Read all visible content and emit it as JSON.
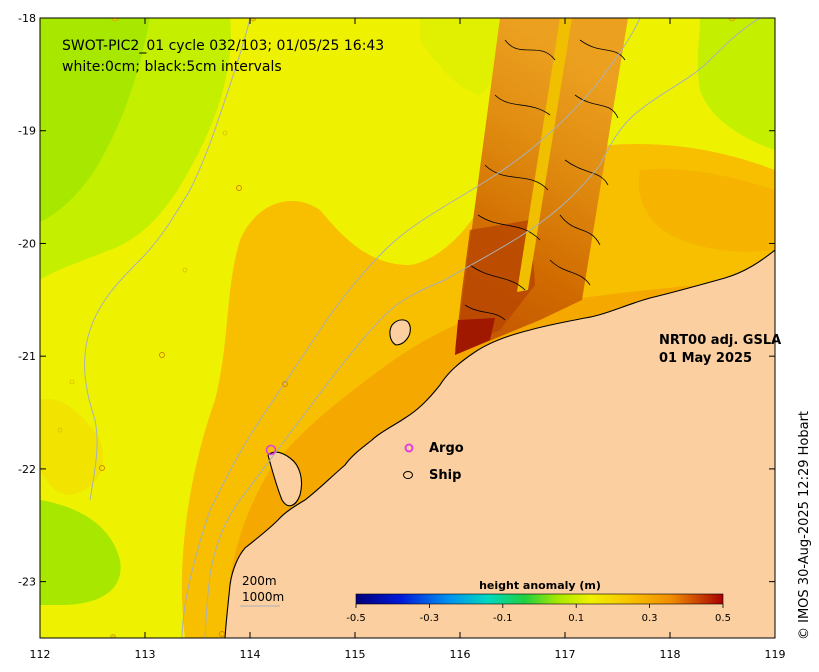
{
  "title": {
    "line1": "SWOT-PIC2_01 cycle 032/103; 01/05/25 16:43",
    "line2": "white:0cm; black:5cm intervals"
  },
  "product": {
    "line1": "NRT00 adj. GSLA",
    "line2": "01 May 2025"
  },
  "legend": {
    "items": [
      {
        "label": "Argo",
        "marker": "magenta-circle-icon",
        "color": "#e040e0"
      },
      {
        "label": "Ship",
        "marker": "black-circle-icon",
        "color": "#000000"
      }
    ]
  },
  "scale_labels": {
    "depth_200": "200m",
    "depth_1000": "1000m"
  },
  "colorbar": {
    "title": "height anomaly (m)",
    "ticks": [
      "-0.5",
      "-0.3",
      "-0.1",
      "0.1",
      "0.3",
      "0.5"
    ],
    "range": [
      -0.5,
      0.5
    ]
  },
  "credit": "© IMOS 30-Aug-2025 12:29 Hobart",
  "colors": {
    "land": "#fbcfa0",
    "ocean_low": "#b6ee00",
    "ocean_mid": "#eef200",
    "ocean_high": "#f8b800",
    "swath_high": "#c85a00"
  },
  "chart_data": {
    "type": "heatmap",
    "xlabel": "",
    "ylabel": "",
    "xlim": [
      112,
      119
    ],
    "ylim": [
      -23.5,
      -18
    ],
    "x_ticks": [
      "112",
      "113",
      "114",
      "115",
      "116",
      "117",
      "118",
      "119"
    ],
    "y_ticks": [
      "-18",
      "-19",
      "-20",
      "-21",
      "-22",
      "-23"
    ],
    "x_tick_values": [
      112,
      113,
      114,
      115,
      116,
      117,
      118,
      119
    ],
    "y_tick_values": [
      -18,
      -19,
      -20,
      -21,
      -22,
      -23
    ],
    "colorbar_range": [
      -0.5,
      0.5
    ],
    "colorbar_label": "height anomaly (m)",
    "grid": false
  }
}
